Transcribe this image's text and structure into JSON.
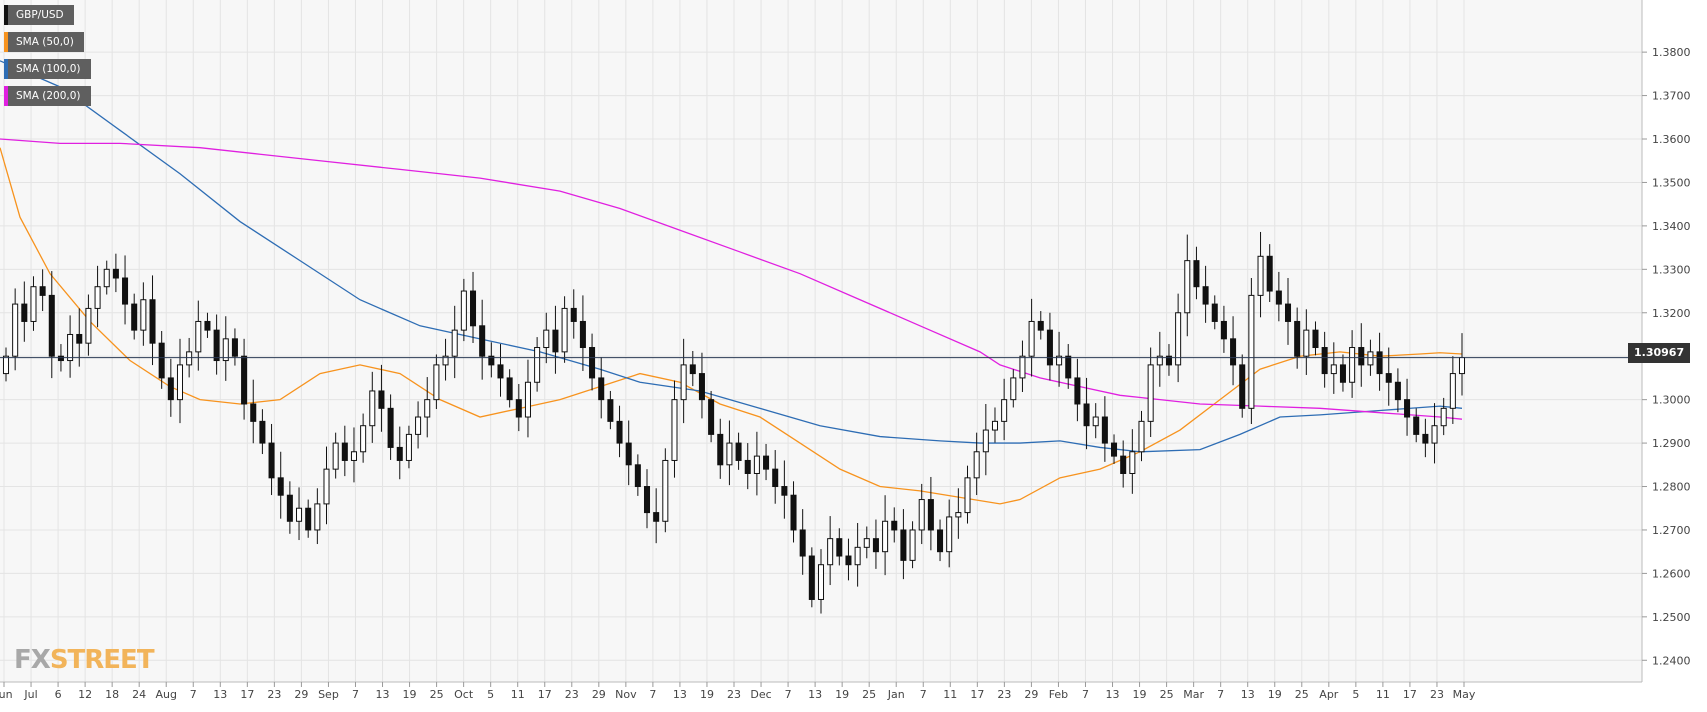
{
  "legend": [
    {
      "label": "GBP/USD",
      "color": "#111111"
    },
    {
      "label": "SMA (50,0)",
      "color": "#f7931e"
    },
    {
      "label": "SMA (100,0)",
      "color": "#2e6db4"
    },
    {
      "label": "SMA (200,0)",
      "color": "#e020e0"
    }
  ],
  "current_price": "1.30967",
  "logo": {
    "fx": "FX",
    "street": "STREET"
  },
  "chart_data": {
    "type": "candlestick",
    "title": "",
    "xlabel": "",
    "ylabel": "",
    "ylim": [
      1.235,
      1.392
    ],
    "grid": true,
    "y_ticks": [
      "1.3800",
      "1.3700",
      "1.3600",
      "1.3500",
      "1.3400",
      "1.3300",
      "1.3200",
      "1.3100",
      "1.3000",
      "1.2900",
      "1.2800",
      "1.2700",
      "1.2600",
      "1.2500",
      "1.2400"
    ],
    "x_ticks": [
      "Jun",
      "Jul",
      "6",
      "12",
      "18",
      "24",
      "Aug",
      "7",
      "13",
      "17",
      "23",
      "29",
      "Sep",
      "7",
      "13",
      "19",
      "25",
      "Oct",
      "5",
      "11",
      "17",
      "23",
      "29",
      "Nov",
      "7",
      "13",
      "19",
      "23",
      "Dec",
      "7",
      "13",
      "19",
      "25",
      "Jan",
      "7",
      "11",
      "17",
      "23",
      "29",
      "Feb",
      "7",
      "13",
      "19",
      "25",
      "Mar",
      "7",
      "13",
      "19",
      "25",
      "Apr",
      "5",
      "11",
      "17",
      "23",
      "May"
    ],
    "current_price": 1.30967,
    "series": [
      {
        "name": "GBP/USD",
        "kind": "ohlc",
        "close": [
          1.31,
          1.322,
          1.318,
          1.326,
          1.324,
          1.31,
          1.309,
          1.315,
          1.313,
          1.321,
          1.326,
          1.33,
          1.328,
          1.322,
          1.316,
          1.323,
          1.313,
          1.305,
          1.3,
          1.308,
          1.311,
          1.318,
          1.316,
          1.309,
          1.314,
          1.31,
          1.299,
          1.295,
          1.29,
          1.282,
          1.278,
          1.272,
          1.275,
          1.27,
          1.276,
          1.284,
          1.29,
          1.286,
          1.288,
          1.294,
          1.302,
          1.298,
          1.289,
          1.286,
          1.292,
          1.296,
          1.3,
          1.308,
          1.31,
          1.316,
          1.325,
          1.317,
          1.31,
          1.308,
          1.305,
          1.3,
          1.296,
          1.304,
          1.312,
          1.316,
          1.311,
          1.321,
          1.318,
          1.312,
          1.305,
          1.3,
          1.295,
          1.29,
          1.285,
          1.28,
          1.274,
          1.272,
          1.286,
          1.3,
          1.308,
          1.306,
          1.3,
          1.292,
          1.285,
          1.29,
          1.286,
          1.283,
          1.287,
          1.284,
          1.28,
          1.278,
          1.27,
          1.264,
          1.254,
          1.262,
          1.268,
          1.264,
          1.262,
          1.266,
          1.268,
          1.265,
          1.272,
          1.27,
          1.263,
          1.27,
          1.277,
          1.27,
          1.265,
          1.273,
          1.274,
          1.282,
          1.288,
          1.293,
          1.295,
          1.3,
          1.305,
          1.31,
          1.318,
          1.316,
          1.308,
          1.31,
          1.305,
          1.299,
          1.294,
          1.296,
          1.29,
          1.287,
          1.283,
          1.288,
          1.295,
          1.308,
          1.31,
          1.308,
          1.32,
          1.332,
          1.326,
          1.322,
          1.318,
          1.314,
          1.308,
          1.298,
          1.324,
          1.333,
          1.325,
          1.322,
          1.318,
          1.31,
          1.316,
          1.312,
          1.306,
          1.308,
          1.304,
          1.312,
          1.308,
          1.311,
          1.306,
          1.304,
          1.3,
          1.296,
          1.292,
          1.29,
          1.294,
          1.298,
          1.306,
          1.3097
        ]
      }
    ],
    "sma": [
      {
        "name": "SMA (50,0)",
        "color": "#f7931e",
        "points": [
          [
            0,
            1.358
          ],
          [
            20,
            1.342
          ],
          [
            50,
            1.329
          ],
          [
            90,
            1.318
          ],
          [
            130,
            1.309
          ],
          [
            170,
            1.303
          ],
          [
            200,
            1.3
          ],
          [
            240,
            1.299
          ],
          [
            280,
            1.3
          ],
          [
            320,
            1.306
          ],
          [
            360,
            1.308
          ],
          [
            400,
            1.306
          ],
          [
            440,
            1.3
          ],
          [
            480,
            1.296
          ],
          [
            520,
            1.298
          ],
          [
            560,
            1.3
          ],
          [
            600,
            1.303
          ],
          [
            640,
            1.306
          ],
          [
            680,
            1.304
          ],
          [
            720,
            1.299
          ],
          [
            760,
            1.296
          ],
          [
            800,
            1.29
          ],
          [
            840,
            1.284
          ],
          [
            880,
            1.28
          ],
          [
            920,
            1.279
          ],
          [
            960,
            1.2775
          ],
          [
            1000,
            1.276
          ],
          [
            1020,
            1.277
          ],
          [
            1060,
            1.282
          ],
          [
            1100,
            1.284
          ],
          [
            1140,
            1.288
          ],
          [
            1180,
            1.293
          ],
          [
            1220,
            1.3
          ],
          [
            1260,
            1.307
          ],
          [
            1300,
            1.31
          ],
          [
            1340,
            1.311
          ],
          [
            1380,
            1.31
          ],
          [
            1420,
            1.3105
          ],
          [
            1440,
            1.3108
          ],
          [
            1462,
            1.3105
          ]
        ]
      },
      {
        "name": "SMA (100,0)",
        "color": "#2e6db4",
        "points": [
          [
            0,
            1.378
          ],
          [
            60,
            1.372
          ],
          [
            120,
            1.362
          ],
          [
            180,
            1.352
          ],
          [
            240,
            1.341
          ],
          [
            300,
            1.332
          ],
          [
            360,
            1.323
          ],
          [
            420,
            1.317
          ],
          [
            480,
            1.314
          ],
          [
            540,
            1.311
          ],
          [
            600,
            1.307
          ],
          [
            640,
            1.304
          ],
          [
            700,
            1.302
          ],
          [
            760,
            1.298
          ],
          [
            820,
            1.294
          ],
          [
            880,
            1.2915
          ],
          [
            940,
            1.2905
          ],
          [
            980,
            1.29
          ],
          [
            1020,
            1.29
          ],
          [
            1060,
            1.2905
          ],
          [
            1100,
            1.289
          ],
          [
            1140,
            1.288
          ],
          [
            1200,
            1.2885
          ],
          [
            1240,
            1.292
          ],
          [
            1280,
            1.296
          ],
          [
            1320,
            1.2965
          ],
          [
            1380,
            1.2975
          ],
          [
            1440,
            1.2985
          ],
          [
            1462,
            1.298
          ]
        ]
      },
      {
        "name": "SMA (200,0)",
        "color": "#e020e0",
        "points": [
          [
            0,
            1.36
          ],
          [
            60,
            1.359
          ],
          [
            120,
            1.359
          ],
          [
            200,
            1.358
          ],
          [
            260,
            1.3565
          ],
          [
            320,
            1.355
          ],
          [
            400,
            1.353
          ],
          [
            480,
            1.351
          ],
          [
            560,
            1.348
          ],
          [
            620,
            1.344
          ],
          [
            680,
            1.339
          ],
          [
            740,
            1.334
          ],
          [
            800,
            1.329
          ],
          [
            860,
            1.323
          ],
          [
            920,
            1.317
          ],
          [
            980,
            1.311
          ],
          [
            1000,
            1.308
          ],
          [
            1040,
            1.305
          ],
          [
            1080,
            1.303
          ],
          [
            1120,
            1.301
          ],
          [
            1160,
            1.3
          ],
          [
            1200,
            1.299
          ],
          [
            1260,
            1.2985
          ],
          [
            1320,
            1.298
          ],
          [
            1380,
            1.297
          ],
          [
            1440,
            1.296
          ],
          [
            1462,
            1.2955
          ]
        ]
      }
    ]
  }
}
